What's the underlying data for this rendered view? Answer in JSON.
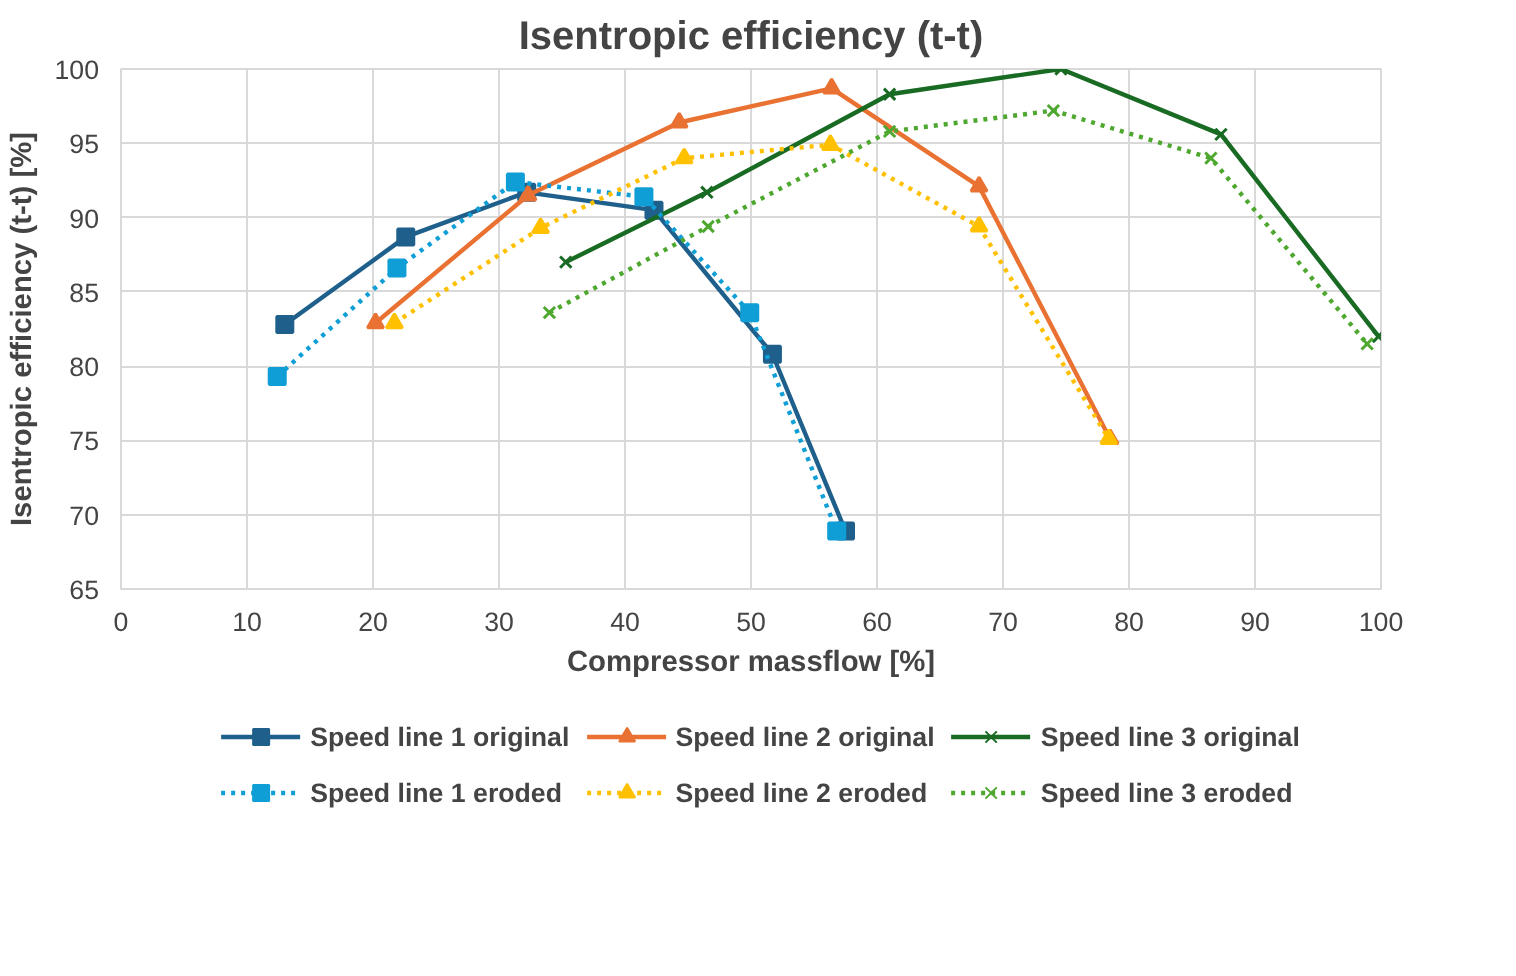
{
  "chart_data": {
    "type": "line",
    "title": "Isentropic efficiency (t-t)",
    "xlabel": "Compressor massflow [%]",
    "ylabel": "Isentropic efficiency (t-t) [%]",
    "xlim": [
      0,
      100
    ],
    "xticks": [
      0,
      10,
      20,
      30,
      40,
      50,
      60,
      70,
      80,
      90,
      100
    ],
    "ylim": [
      65,
      100
    ],
    "yticks": [
      65,
      70,
      75,
      80,
      85,
      90,
      95,
      100
    ],
    "grid": true,
    "legend": "bottom",
    "series": [
      {
        "name": "Speed line 1 original",
        "color": "#1f5f8b",
        "marker": "square",
        "line_style": "solid",
        "x": [
          13,
          22.6,
          32.2,
          42.3,
          51.7,
          57.5
        ],
        "values": [
          82.8,
          88.7,
          91.7,
          90.5,
          80.8,
          68.9
        ]
      },
      {
        "name": "Speed line 2 original",
        "color": "#e97132",
        "marker": "triangle",
        "line_style": "solid",
        "x": [
          20.2,
          32.3,
          44.3,
          56.4,
          68.1,
          78.5
        ],
        "values": [
          82.9,
          91.5,
          96.4,
          98.7,
          92.1,
          75.1
        ]
      },
      {
        "name": "Speed line 3 original",
        "color": "#196b24",
        "marker": "cross",
        "line_style": "solid",
        "x": [
          35.3,
          46.5,
          61.0,
          74.6,
          87.3,
          99.8
        ],
        "values": [
          87.0,
          91.7,
          98.3,
          100.0,
          95.6,
          82.0
        ]
      },
      {
        "name": "Speed line 1 eroded",
        "color": "#0f9ed5",
        "marker": "square",
        "line_style": "dotted",
        "x": [
          12.4,
          21.9,
          31.3,
          41.5,
          49.9,
          56.8
        ],
        "values": [
          79.3,
          86.6,
          92.4,
          91.4,
          83.6,
          68.9
        ]
      },
      {
        "name": "Speed line 2 eroded",
        "color": "#ffc000",
        "marker": "triangle",
        "line_style": "dotted",
        "x": [
          21.7,
          33.3,
          44.7,
          56.3,
          68.1,
          78.4
        ],
        "values": [
          82.9,
          89.3,
          94.0,
          94.9,
          89.4,
          75.1
        ]
      },
      {
        "name": "Speed line 3 eroded",
        "color": "#4ea72e",
        "marker": "cross",
        "line_style": "dotted",
        "x": [
          34.0,
          46.6,
          61.0,
          74.0,
          86.5,
          98.9
        ],
        "values": [
          83.6,
          89.4,
          95.8,
          97.2,
          94.0,
          81.5
        ]
      }
    ]
  }
}
